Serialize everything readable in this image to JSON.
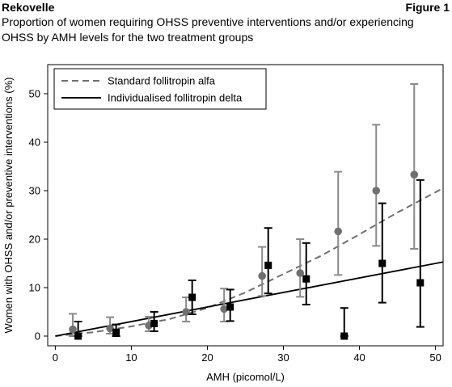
{
  "header": {
    "product": "Rekovelle",
    "figure": "Figure 1",
    "description": "Proportion of women requiring OHSS preventive interventions and/or experiencing OHSS by AMH levels for the two treatment groups"
  },
  "chart_data": {
    "type": "scatter",
    "xlabel": "AMH (picomol/L)",
    "ylabel": "Women with OHSS and/or preventive interventions (%)",
    "xlim": [
      -1,
      51
    ],
    "ylim": [
      -2,
      56
    ],
    "xticks": [
      0,
      10,
      20,
      30,
      40,
      50
    ],
    "yticks": [
      0,
      10,
      20,
      30,
      40,
      50
    ],
    "legend_position": "top-left",
    "series": [
      {
        "name": "Standard follitropin alfa",
        "color": "#707070",
        "line_style": "dashed",
        "marker": "circle",
        "points": [
          {
            "x": 2.3,
            "y": 1.4,
            "lo": 0.0,
            "hi": 4.6
          },
          {
            "x": 7.2,
            "y": 1.6,
            "lo": 0.5,
            "hi": 3.9
          },
          {
            "x": 12.3,
            "y": 2.2,
            "lo": 1.0,
            "hi": 4.0
          },
          {
            "x": 17.2,
            "y": 5.0,
            "lo": 3.0,
            "hi": 8.0
          },
          {
            "x": 22.2,
            "y": 5.6,
            "lo": 3.0,
            "hi": 9.8
          },
          {
            "x": 27.2,
            "y": 12.4,
            "lo": 8.3,
            "hi": 18.4
          },
          {
            "x": 32.2,
            "y": 13.0,
            "lo": 8.1,
            "hi": 20.0
          },
          {
            "x": 37.2,
            "y": 21.6,
            "lo": 12.6,
            "hi": 33.9
          },
          {
            "x": 42.2,
            "y": 30.0,
            "lo": 18.6,
            "hi": 43.6
          },
          {
            "x": 47.2,
            "y": 33.3,
            "lo": 18.0,
            "hi": 52.0
          }
        ],
        "curve": [
          {
            "x": 0,
            "y": 0.0
          },
          {
            "x": 5,
            "y": 0.8
          },
          {
            "x": 10,
            "y": 2.0
          },
          {
            "x": 15,
            "y": 3.5
          },
          {
            "x": 20,
            "y": 5.8
          },
          {
            "x": 25,
            "y": 9.0
          },
          {
            "x": 30,
            "y": 12.8
          },
          {
            "x": 35,
            "y": 16.6
          },
          {
            "x": 40,
            "y": 21.0
          },
          {
            "x": 45,
            "y": 25.5
          },
          {
            "x": 51,
            "y": 30.5
          }
        ]
      },
      {
        "name": "Individualised follitropin delta",
        "color": "#000000",
        "line_style": "solid",
        "marker": "square",
        "points": [
          {
            "x": 3.0,
            "y": 0.0,
            "lo": 0.0,
            "hi": 3.0
          },
          {
            "x": 8.0,
            "y": 0.8,
            "lo": 0.0,
            "hi": 2.4
          },
          {
            "x": 13.0,
            "y": 2.6,
            "lo": 1.0,
            "hi": 5.0
          },
          {
            "x": 18.0,
            "y": 8.0,
            "lo": 4.5,
            "hi": 11.5
          },
          {
            "x": 23.0,
            "y": 6.0,
            "lo": 3.1,
            "hi": 9.6
          },
          {
            "x": 28.0,
            "y": 14.6,
            "lo": 8.8,
            "hi": 22.3
          },
          {
            "x": 33.0,
            "y": 11.8,
            "lo": 6.5,
            "hi": 19.2
          },
          {
            "x": 38.0,
            "y": 0.0,
            "lo": 0.0,
            "hi": 5.8
          },
          {
            "x": 43.0,
            "y": 15.0,
            "lo": 6.9,
            "hi": 27.4
          },
          {
            "x": 48.0,
            "y": 11.0,
            "lo": 1.9,
            "hi": 32.2
          }
        ],
        "curve": [
          {
            "x": 0,
            "y": 0.0
          },
          {
            "x": 51,
            "y": 15.3
          }
        ]
      }
    ]
  }
}
